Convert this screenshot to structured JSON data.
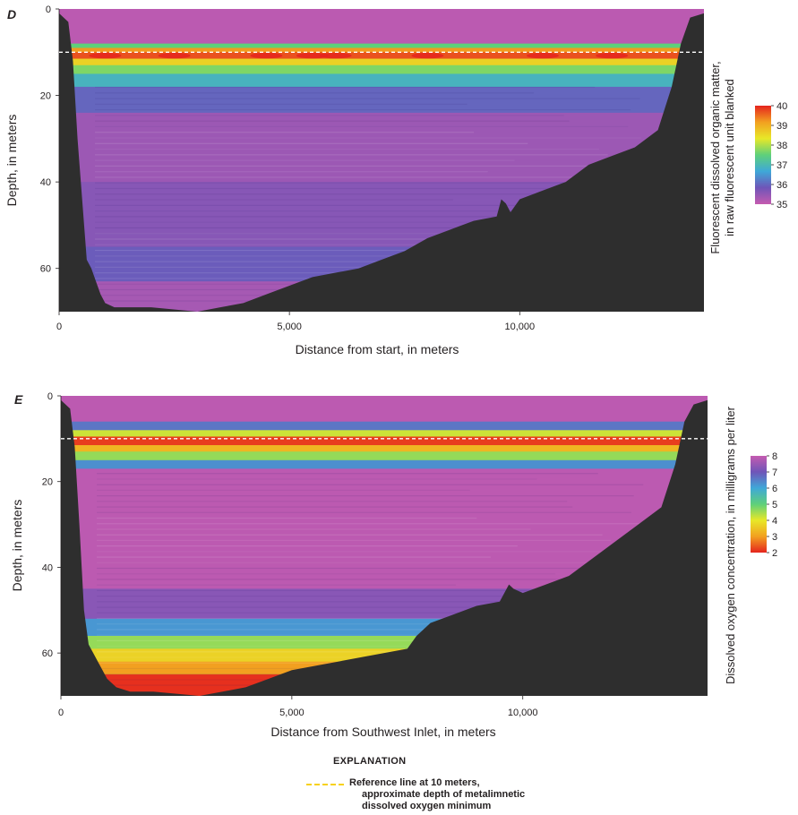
{
  "chart_data": [
    {
      "panel_label": "D",
      "type": "heatmap",
      "xlabel": "Distance from start, in meters",
      "ylabel": "Depth, in meters",
      "xlim": [
        0,
        14000
      ],
      "ylim": [
        0,
        70
      ],
      "y_inverted": true,
      "x_ticks": [
        "0",
        "5,000",
        "10,000"
      ],
      "x_tick_values": [
        0,
        5000,
        10000
      ],
      "y_ticks": [
        "0",
        "20",
        "40",
        "60"
      ],
      "y_tick_values": [
        0,
        20,
        40,
        60
      ],
      "colorbar": {
        "label_line1": "Fluorescent dissolved organic matter,",
        "label_line2": "in raw fluorescent unit blanked",
        "min": 35,
        "max": 40,
        "ticks": [
          "35",
          "36",
          "37",
          "38",
          "39",
          "40"
        ],
        "tick_values": [
          35,
          36,
          37,
          38,
          39,
          40
        ],
        "colors": [
          "#c55bb0",
          "#6f55b8",
          "#3fa8d8",
          "#5ed07a",
          "#e8e828",
          "#f2a020",
          "#e5241e"
        ]
      },
      "reference_line_depth": 10,
      "layers": [
        {
          "top": 0,
          "bottom": 8,
          "value": 35.1
        },
        {
          "top": 8,
          "bottom": 9,
          "value": 37.5
        },
        {
          "top": 9,
          "bottom": 10,
          "value": 39.2
        },
        {
          "top": 10,
          "bottom": 11.5,
          "value": 39.7
        },
        {
          "top": 11.5,
          "bottom": 13,
          "value": 38.6
        },
        {
          "top": 13,
          "bottom": 15,
          "value": 37.7
        },
        {
          "top": 15,
          "bottom": 18,
          "value": 36.9
        },
        {
          "top": 18,
          "bottom": 24,
          "value": 36.0
        },
        {
          "top": 24,
          "bottom": 40,
          "value": 35.4
        },
        {
          "top": 40,
          "bottom": 55,
          "value": 35.6
        },
        {
          "top": 55,
          "bottom": 63,
          "value": 35.9
        },
        {
          "top": 63,
          "bottom": 70,
          "value": 35.3
        }
      ],
      "hotspots_x": [
        1000,
        2500,
        4500,
        5500,
        6000,
        8000,
        10500,
        12000
      ],
      "bottom_profile": {
        "distance": [
          0,
          200,
          300,
          400,
          600,
          700,
          800,
          900,
          1000,
          1200,
          1500,
          2000,
          3000,
          3500,
          4000,
          4500,
          5000,
          5500,
          6000,
          6500,
          7000,
          7500,
          8000,
          8500,
          9000,
          9500,
          9600,
          9700,
          9800,
          10000,
          10500,
          11000,
          11500,
          12000,
          12500,
          13000,
          13300,
          13500,
          13700,
          14000
        ],
        "depth": [
          1,
          3,
          12,
          30,
          58,
          60,
          63,
          66,
          68,
          69,
          69,
          69,
          70,
          69,
          68,
          66,
          64,
          62,
          61,
          60,
          58,
          56,
          53,
          51,
          49,
          48,
          44,
          45,
          47,
          44,
          42,
          40,
          36,
          34,
          32,
          28,
          18,
          8,
          2,
          1
        ]
      }
    },
    {
      "panel_label": "E",
      "type": "heatmap",
      "xlabel": "Distance from Southwest Inlet, in meters",
      "ylabel": "Depth, in meters",
      "xlim": [
        0,
        14000
      ],
      "ylim": [
        0,
        70
      ],
      "y_inverted": true,
      "x_ticks": [
        "0",
        "5,000",
        "10,000"
      ],
      "x_tick_values": [
        0,
        5000,
        10000
      ],
      "y_ticks": [
        "0",
        "20",
        "40",
        "60"
      ],
      "y_tick_values": [
        0,
        20,
        40,
        60
      ],
      "colorbar": {
        "label": "Dissolved oxygen concentration, in milligrams per liter",
        "min": 2,
        "max": 8,
        "ticks": [
          "2",
          "3",
          "4",
          "5",
          "6",
          "7",
          "8"
        ],
        "tick_values": [
          2,
          3,
          4,
          5,
          6,
          7,
          8
        ],
        "colors": [
          "#e5241e",
          "#f2a020",
          "#e8e828",
          "#5ed07a",
          "#3fa8d8",
          "#6f55b8",
          "#c55bb0"
        ]
      },
      "reference_line_depth": 10,
      "layers": [
        {
          "top": 0,
          "bottom": 6,
          "value": 7.9
        },
        {
          "top": 6,
          "bottom": 8,
          "value": 6.6
        },
        {
          "top": 8,
          "bottom": 9.5,
          "value": 4.2
        },
        {
          "top": 9.5,
          "bottom": 11.5,
          "value": 2.2
        },
        {
          "top": 11.5,
          "bottom": 13,
          "value": 3.3
        },
        {
          "top": 13,
          "bottom": 15,
          "value": 4.6
        },
        {
          "top": 15,
          "bottom": 17,
          "value": 6.3
        },
        {
          "top": 17,
          "bottom": 45,
          "value": 7.9
        },
        {
          "top": 45,
          "bottom": 52,
          "value": 7.3
        },
        {
          "top": 52,
          "bottom": 56,
          "value": 6.2
        },
        {
          "top": 56,
          "bottom": 59,
          "value": 4.6
        },
        {
          "top": 59,
          "bottom": 62,
          "value": 3.7
        },
        {
          "top": 62,
          "bottom": 65,
          "value": 3.0
        },
        {
          "top": 65,
          "bottom": 70,
          "value": 2.1
        }
      ],
      "bottom_profile": {
        "distance": [
          0,
          200,
          300,
          400,
          500,
          600,
          700,
          800,
          900,
          1000,
          1200,
          1500,
          2000,
          3000,
          3500,
          4000,
          4500,
          5000,
          5500,
          6000,
          6500,
          7000,
          7500,
          7700,
          8000,
          8500,
          9000,
          9500,
          9700,
          9800,
          10000,
          10500,
          11000,
          11500,
          12000,
          12500,
          13000,
          13300,
          13500,
          13700,
          14000
        ],
        "depth": [
          1,
          3,
          12,
          30,
          50,
          58,
          60,
          62,
          64,
          66,
          68,
          69,
          69,
          70,
          69,
          68,
          66,
          64,
          63,
          62,
          61,
          60,
          59,
          56,
          53,
          51,
          49,
          48,
          44,
          45,
          46,
          44,
          42,
          38,
          34,
          30,
          26,
          16,
          6,
          2,
          1
        ]
      }
    }
  ],
  "explanation": {
    "title": "EXPLANATION",
    "reference_line_color": "#f7d117",
    "reference_line_label_1": "Reference line at 10 meters,",
    "reference_line_label_2": "approximate depth of metalimnetic",
    "reference_line_label_3": "dissolved oxygen minimum"
  },
  "colors": {
    "terrain": "#2e2e2e",
    "dashed_reference_in_plot": "#ffffff"
  }
}
